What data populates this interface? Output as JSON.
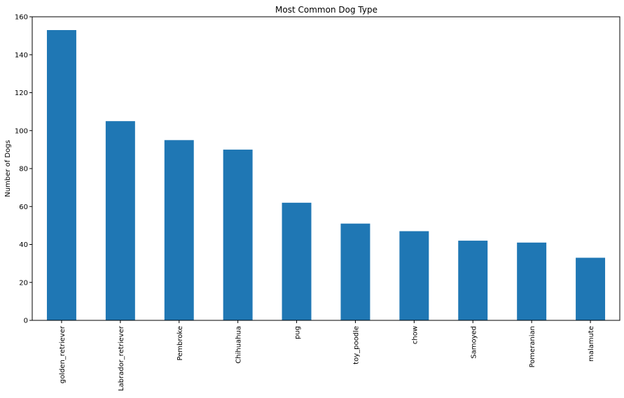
{
  "chart_data": {
    "type": "bar",
    "title": "Most Common Dog Type",
    "xlabel": "",
    "ylabel": "Number of Dogs",
    "categories": [
      "golden_retriever",
      "Labrador_retriever",
      "Pembroke",
      "Chihuahua",
      "pug",
      "toy_poodle",
      "chow",
      "Samoyed",
      "Pomeranian",
      "malamute"
    ],
    "values": [
      153,
      105,
      95,
      90,
      62,
      51,
      47,
      42,
      41,
      33
    ],
    "ylim": [
      0,
      160
    ],
    "yticks": [
      0,
      20,
      40,
      60,
      80,
      100,
      120,
      140,
      160
    ],
    "bar_color": "#1f77b4",
    "grid": false,
    "legend": "none"
  }
}
